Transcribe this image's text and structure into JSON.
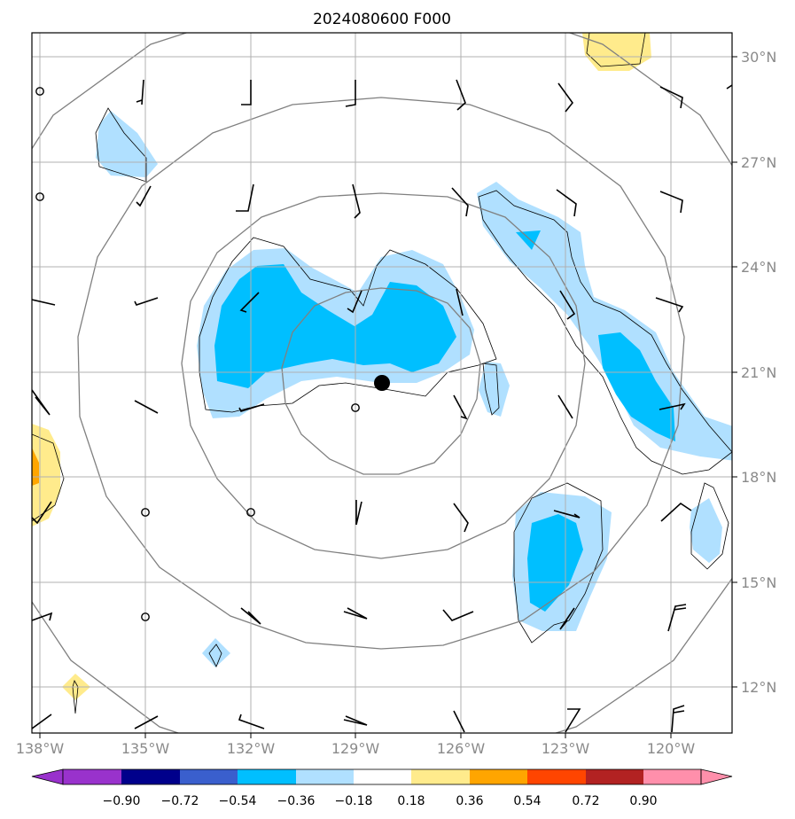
{
  "title": "2024080600 F000",
  "lon_labels": [
    "138°W",
    "135°W",
    "132°W",
    "129°W",
    "126°W",
    "123°W",
    "120°W"
  ],
  "lat_labels": [
    "30°N",
    "27°N",
    "24°N",
    "21°N",
    "18°N",
    "15°N",
    "12°N"
  ],
  "colorbar": {
    "ticks": [
      "−0.90",
      "−0.72",
      "−0.54",
      "−0.36",
      "−0.18",
      "0.18",
      "0.36",
      "0.54",
      "0.72",
      "0.90"
    ],
    "colors": [
      "#9932cc",
      "#00008b",
      "#3a5fcd",
      "#00bfff",
      "#b0e0ff",
      "#ffffff",
      "#ffeb8c",
      "#ffa500",
      "#ff4500",
      "#b22222",
      "#ff8fab"
    ]
  },
  "map": {
    "grid_lon": [
      -138,
      -135,
      -132,
      -129,
      -126,
      -123,
      -120
    ],
    "grid_lat": [
      30,
      27,
      24,
      21,
      18,
      15,
      12
    ],
    "center_marker": "storm center",
    "colors": {
      "light_blue": "#b0e0ff",
      "deep_sky_blue": "#00bfff",
      "light_yellow": "#ffeb8c",
      "orange": "#ffa500",
      "gray_lines": "#808080"
    }
  }
}
